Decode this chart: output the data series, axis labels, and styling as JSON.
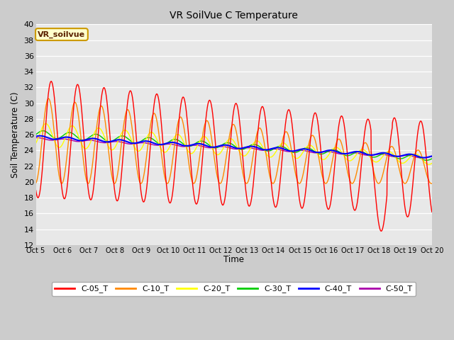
{
  "title": "VR SoilVue C Temperature",
  "ylabel": "Soil Temperature (C)",
  "xlabel": "Time",
  "ylim": [
    12,
    40
  ],
  "series_colors": {
    "C-05_T": "#ff0000",
    "C-10_T": "#ff8800",
    "C-20_T": "#ffff00",
    "C-30_T": "#00cc00",
    "C-40_T": "#0000ff",
    "C-50_T": "#aa00aa"
  },
  "xtick_labels": [
    "Oct 5",
    "Oct 6",
    "Oct 7",
    "Oct 8",
    "Oct 9",
    "Oct 10",
    "Oct 11",
    "Oct 12",
    "Oct 13",
    "Oct 14",
    "Oct 15",
    "Oct 16",
    "Oct 17",
    "Oct 18",
    "Oct 19",
    "Oct 20"
  ],
  "legend_label": "VR_soilvue",
  "fig_facecolor": "#cccccc",
  "ax_facecolor": "#e8e8e8"
}
